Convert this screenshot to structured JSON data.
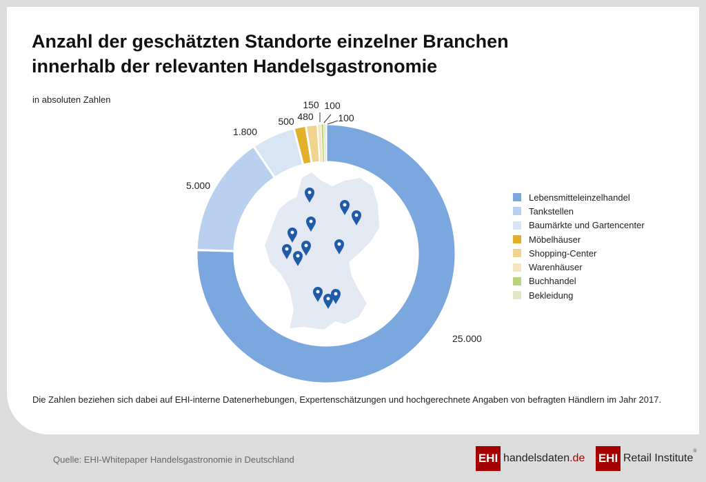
{
  "title_line1": "Anzahl der geschätzten Standorte einzelner Branchen",
  "title_line2": "innerhalb der relevanten Handelsgastronomie",
  "subtitle": "in absoluten Zahlen",
  "note": "Die Zahlen beziehen sich dabei auf EHI-interne Datenerhebungen, Expertenschätzungen und hochgerechnete Angaben von befragten Händlern im Jahr 2017.",
  "source": "Quelle: EHI-Whitepaper Handelsgastronomie in Deutschland",
  "logos": {
    "box1": "EHI",
    "text1a": "handelsdaten",
    "text1b": ".de",
    "box2": "EHI",
    "text2": "Retail Institute",
    "reg": "®"
  },
  "chart_data": {
    "type": "pie",
    "donut": true,
    "categories": [
      "Lebensmitteleinzelhandel",
      "Tankstellen",
      "Baumärkte und Gartencenter",
      "Möbelhäuser",
      "Shopping-Center",
      "Warenhäuser",
      "Buchhandel",
      "Bekleidung"
    ],
    "values": [
      25000,
      5000,
      1800,
      500,
      480,
      150,
      100,
      100
    ],
    "labels": [
      "25.000",
      "5.000",
      "1.800",
      "500",
      "480",
      "150",
      "100",
      "100"
    ],
    "colors": [
      "#7aa7dd",
      "#b9d1ee",
      "#d8e5f5",
      "#e2b12b",
      "#efd38f",
      "#f5e6c0",
      "#b9d47a",
      "#dfe9c4"
    ],
    "legend_position": "right",
    "center_image": "germany-map-with-location-pins"
  }
}
